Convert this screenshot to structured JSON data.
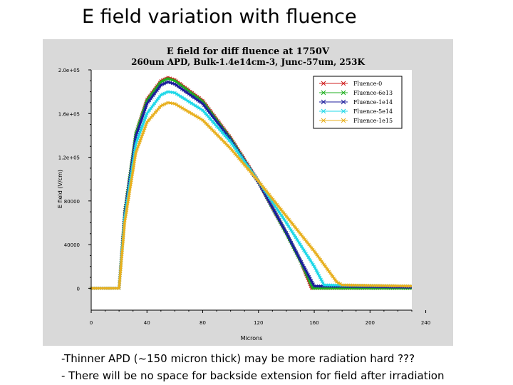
{
  "slide": {
    "title": "E field variation with fluence",
    "notes": [
      "-Thinner APD (~150 micron thick) may be more radiation hard ???",
      "- There will be no space for backside extension for field after irradiation"
    ]
  },
  "chart_data": {
    "type": "line",
    "title": "E field for diff fluence at 1750V",
    "subtitle": "260um APD, Bulk-1.4e14cm-3, Junc-57um, 253K",
    "xlabel": "Microns",
    "ylabel": "E field (V/cm)",
    "xlim": [
      0,
      230
    ],
    "ylim": [
      -20000,
      200000
    ],
    "x_ticks": [
      0,
      40,
      80,
      120,
      160,
      200,
      240
    ],
    "x_tick_labels": [
      "0",
      "40",
      "80",
      "120",
      "160",
      "200",
      "240"
    ],
    "y_ticks": [
      0,
      40000,
      80000,
      120000,
      160000,
      200000
    ],
    "y_tick_labels": [
      "0",
      "40000",
      "80000",
      "1.2e+05",
      "1.6e+05",
      "2.0e+05"
    ],
    "grid": false,
    "legend_position": "top-right",
    "series": [
      {
        "name": "Fluence-0",
        "color": "#d02020",
        "points": [
          [
            0,
            0
          ],
          [
            18,
            0
          ],
          [
            20,
            0
          ],
          [
            24,
            70000
          ],
          [
            32,
            142000
          ],
          [
            40,
            173000
          ],
          [
            50,
            190000
          ],
          [
            55,
            193000
          ],
          [
            60,
            191000
          ],
          [
            80,
            172000
          ],
          [
            100,
            138000
          ],
          [
            120,
            98000
          ],
          [
            140,
            50000
          ],
          [
            150,
            25000
          ],
          [
            158,
            0
          ],
          [
            230,
            0
          ]
        ]
      },
      {
        "name": "Fluence-6e13",
        "color": "#20b020",
        "points": [
          [
            0,
            0
          ],
          [
            18,
            0
          ],
          [
            20,
            0
          ],
          [
            24,
            70000
          ],
          [
            32,
            142000
          ],
          [
            40,
            172000
          ],
          [
            50,
            189000
          ],
          [
            55,
            192000
          ],
          [
            60,
            190000
          ],
          [
            80,
            171000
          ],
          [
            100,
            137000
          ],
          [
            120,
            97000
          ],
          [
            140,
            50000
          ],
          [
            150,
            25000
          ],
          [
            159,
            0
          ],
          [
            230,
            0
          ]
        ]
      },
      {
        "name": "Fluence-1e14",
        "color": "#1c1c9c",
        "points": [
          [
            0,
            0
          ],
          [
            18,
            0
          ],
          [
            20,
            0
          ],
          [
            24,
            68000
          ],
          [
            32,
            139000
          ],
          [
            40,
            169000
          ],
          [
            50,
            186000
          ],
          [
            55,
            189000
          ],
          [
            60,
            187000
          ],
          [
            80,
            169000
          ],
          [
            100,
            136000
          ],
          [
            120,
            97000
          ],
          [
            140,
            51000
          ],
          [
            150,
            26000
          ],
          [
            160,
            2000
          ],
          [
            230,
            1000
          ]
        ]
      },
      {
        "name": "Fluence-5e14",
        "color": "#20d8e8",
        "points": [
          [
            0,
            0
          ],
          [
            18,
            0
          ],
          [
            20,
            0
          ],
          [
            24,
            65000
          ],
          [
            32,
            132000
          ],
          [
            40,
            160000
          ],
          [
            50,
            177000
          ],
          [
            55,
            180000
          ],
          [
            60,
            179000
          ],
          [
            80,
            163000
          ],
          [
            100,
            134000
          ],
          [
            120,
            98000
          ],
          [
            140,
            60000
          ],
          [
            160,
            20000
          ],
          [
            167,
            3000
          ],
          [
            230,
            2000
          ]
        ]
      },
      {
        "name": "Fluence-1e15",
        "color": "#e8b020",
        "points": [
          [
            0,
            0
          ],
          [
            18,
            0
          ],
          [
            20,
            0
          ],
          [
            24,
            60000
          ],
          [
            32,
            124000
          ],
          [
            40,
            152000
          ],
          [
            50,
            167000
          ],
          [
            55,
            170000
          ],
          [
            60,
            169000
          ],
          [
            80,
            154000
          ],
          [
            100,
            128000
          ],
          [
            120,
            98000
          ],
          [
            140,
            66000
          ],
          [
            160,
            34000
          ],
          [
            176,
            6000
          ],
          [
            180,
            3000
          ],
          [
            230,
            2000
          ]
        ]
      }
    ]
  }
}
